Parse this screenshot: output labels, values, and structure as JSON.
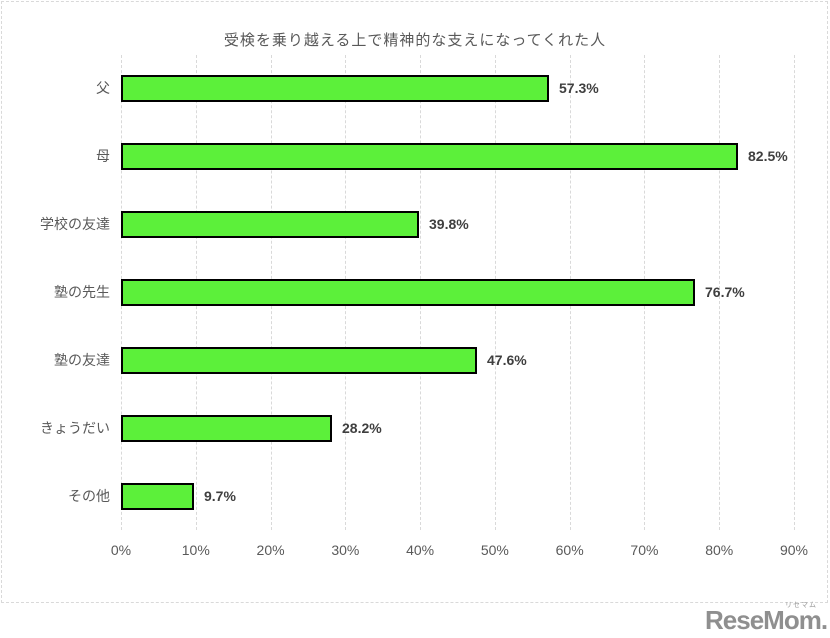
{
  "chart_data": {
    "type": "bar",
    "orientation": "horizontal",
    "title": "受検を乗り越える上で精神的な支えになってくれた人",
    "categories": [
      "父",
      "母",
      "学校の友達",
      "塾の先生",
      "塾の友達",
      "きょうだい",
      "その他"
    ],
    "values": [
      57.3,
      82.5,
      39.8,
      76.7,
      47.6,
      28.2,
      9.7
    ],
    "data_labels": [
      "57.3%",
      "82.5%",
      "39.8%",
      "76.7%",
      "47.6%",
      "28.2%",
      "9.7%"
    ],
    "xlabel": "",
    "ylabel": "",
    "xlim": [
      0,
      90
    ],
    "x_ticks": [
      "0%",
      "10%",
      "20%",
      "30%",
      "40%",
      "50%",
      "60%",
      "70%",
      "80%",
      "90%"
    ],
    "grid": true,
    "legend": "none",
    "bar_color": "#5cf03a",
    "bar_border_color": "#000000",
    "gridline_color": "#d9d9d9",
    "label_color": "#595959",
    "data_label_color": "#3f3f3f"
  },
  "watermark": {
    "text": "ReseMom.",
    "ruby": "リセマム",
    "color": "#8f8f8f"
  }
}
